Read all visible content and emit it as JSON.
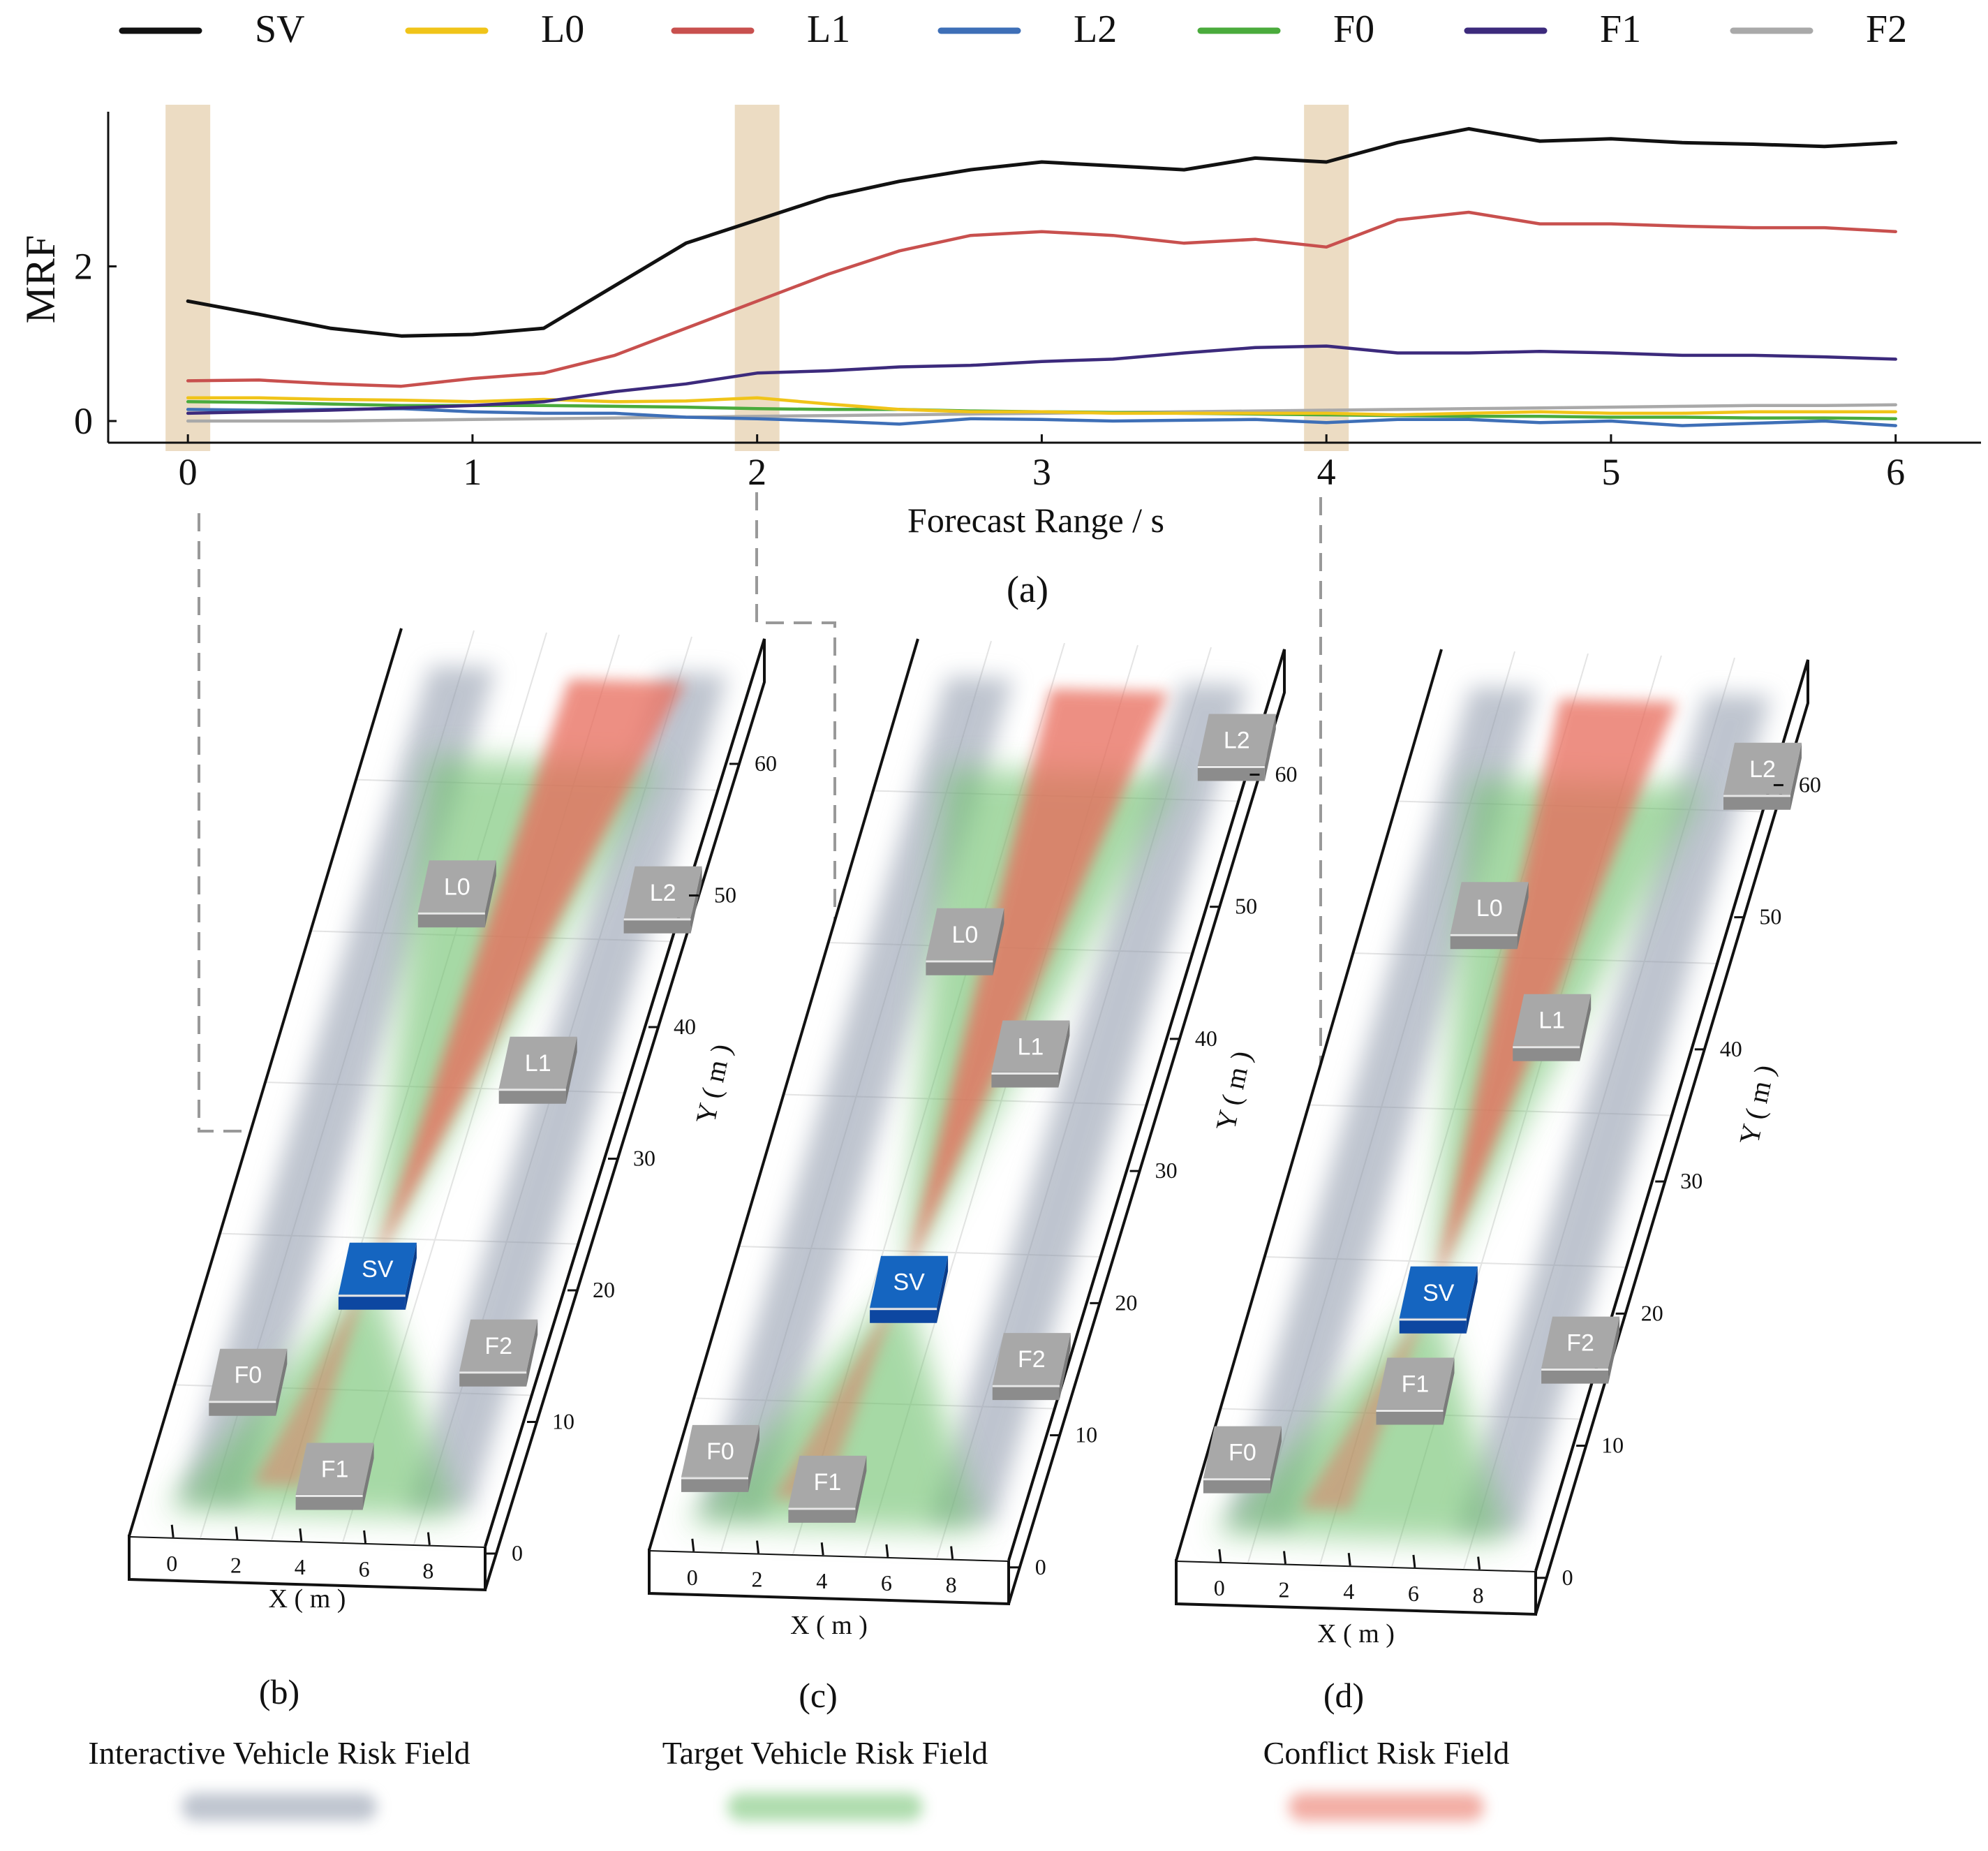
{
  "chart_data": {
    "type": "line",
    "panel_label": "(a)",
    "xlabel": "Forecast Range / s",
    "ylabel": "MRF",
    "xlim": [
      -0.28,
      6.3
    ],
    "ylim": [
      -0.28,
      4.0
    ],
    "xticks": [
      "0",
      "1",
      "2",
      "3",
      "4",
      "5",
      "6"
    ],
    "yticks": [
      "0",
      "2"
    ],
    "highlight_times": [
      0,
      2,
      4
    ],
    "x": [
      0,
      0.25,
      0.5,
      0.75,
      1.0,
      1.25,
      1.5,
      1.75,
      2.0,
      2.25,
      2.5,
      2.75,
      3.0,
      3.25,
      3.5,
      3.75,
      4.0,
      4.25,
      4.5,
      4.75,
      5.0,
      5.25,
      5.5,
      5.75,
      6.0
    ],
    "series": [
      {
        "name": "SV",
        "color": "#111111",
        "values": [
          1.55,
          1.38,
          1.2,
          1.1,
          1.12,
          1.2,
          1.75,
          2.3,
          2.6,
          2.9,
          3.1,
          3.25,
          3.35,
          3.3,
          3.25,
          3.4,
          3.35,
          3.6,
          3.78,
          3.62,
          3.65,
          3.6,
          3.58,
          3.55,
          3.6
        ]
      },
      {
        "name": "L0",
        "color": "#f0c419",
        "values": [
          0.3,
          0.3,
          0.28,
          0.27,
          0.25,
          0.28,
          0.25,
          0.26,
          0.3,
          0.22,
          0.15,
          0.12,
          0.12,
          0.1,
          0.1,
          0.1,
          0.1,
          0.08,
          0.1,
          0.12,
          0.1,
          0.1,
          0.12,
          0.12,
          0.12
        ]
      },
      {
        "name": "L1",
        "color": "#c8504e",
        "values": [
          0.52,
          0.53,
          0.48,
          0.45,
          0.55,
          0.62,
          0.85,
          1.2,
          1.55,
          1.9,
          2.2,
          2.4,
          2.45,
          2.4,
          2.3,
          2.35,
          2.25,
          2.6,
          2.7,
          2.55,
          2.55,
          2.52,
          2.5,
          2.5,
          2.45
        ]
      },
      {
        "name": "L2",
        "color": "#3e6fb7",
        "values": [
          0.15,
          0.14,
          0.15,
          0.16,
          0.12,
          0.1,
          0.1,
          0.05,
          0.03,
          0.0,
          -0.04,
          0.03,
          0.02,
          0.0,
          0.01,
          0.02,
          -0.02,
          0.02,
          0.02,
          -0.02,
          0.0,
          -0.06,
          -0.03,
          0.0,
          -0.06
        ]
      },
      {
        "name": "F0",
        "color": "#4aab3c",
        "values": [
          0.25,
          0.24,
          0.22,
          0.2,
          0.2,
          0.2,
          0.19,
          0.18,
          0.16,
          0.15,
          0.15,
          0.13,
          0.12,
          0.11,
          0.1,
          0.09,
          0.08,
          0.07,
          0.06,
          0.06,
          0.05,
          0.05,
          0.04,
          0.04,
          0.03
        ]
      },
      {
        "name": "F1",
        "color": "#3c2a7c",
        "values": [
          0.1,
          0.12,
          0.14,
          0.17,
          0.2,
          0.25,
          0.38,
          0.48,
          0.62,
          0.65,
          0.7,
          0.72,
          0.77,
          0.8,
          0.88,
          0.95,
          0.97,
          0.88,
          0.88,
          0.9,
          0.88,
          0.85,
          0.85,
          0.83,
          0.8
        ]
      },
      {
        "name": "F2",
        "color": "#a9a9a9",
        "values": [
          0.0,
          0.0,
          0.0,
          0.01,
          0.02,
          0.03,
          0.04,
          0.05,
          0.06,
          0.07,
          0.08,
          0.09,
          0.1,
          0.11,
          0.12,
          0.13,
          0.14,
          0.15,
          0.16,
          0.17,
          0.18,
          0.19,
          0.2,
          0.2,
          0.21
        ]
      }
    ]
  },
  "scenes": [
    {
      "label": "(b)",
      "x_axis_label": "X ( m )",
      "y_axis_label": "Y ( m )",
      "x_ticks": [
        "0",
        "2",
        "4",
        "6",
        "8"
      ],
      "y_ticks": [
        "0",
        "10",
        "20",
        "30",
        "40",
        "50",
        "60"
      ],
      "vehicles": [
        "SV",
        "L0",
        "L1",
        "L2",
        "F0",
        "F1",
        "F2"
      ]
    },
    {
      "label": "(c)",
      "x_axis_label": "X ( m )",
      "y_axis_label": "Y ( m )",
      "x_ticks": [
        "0",
        "2",
        "4",
        "6",
        "8"
      ],
      "y_ticks": [
        "0",
        "10",
        "20",
        "30",
        "40",
        "50",
        "60"
      ],
      "vehicles": [
        "SV",
        "L0",
        "L1",
        "L2",
        "F0",
        "F1",
        "F2"
      ]
    },
    {
      "label": "(d)",
      "x_axis_label": "X ( m )",
      "y_axis_label": "Y ( m )",
      "x_ticks": [
        "0",
        "2",
        "4",
        "6",
        "8"
      ],
      "y_ticks": [
        "0",
        "10",
        "20",
        "30",
        "40",
        "50",
        "60"
      ],
      "vehicles": [
        "SV",
        "L0",
        "L1",
        "L2",
        "F0",
        "F1",
        "F2"
      ]
    }
  ],
  "field_legend": [
    {
      "label": "Interactive Vehicle Risk Field",
      "color": "#8a95a8"
    },
    {
      "label": "Target Vehicle Risk Field",
      "color": "#6cc06a"
    },
    {
      "label": "Conflict Risk Field",
      "color": "#e86a5a"
    }
  ],
  "colors": {
    "subject_vehicle": "#1565c0",
    "other_vehicle": "#a8a8a8",
    "highlight": "#ecdcc3"
  }
}
